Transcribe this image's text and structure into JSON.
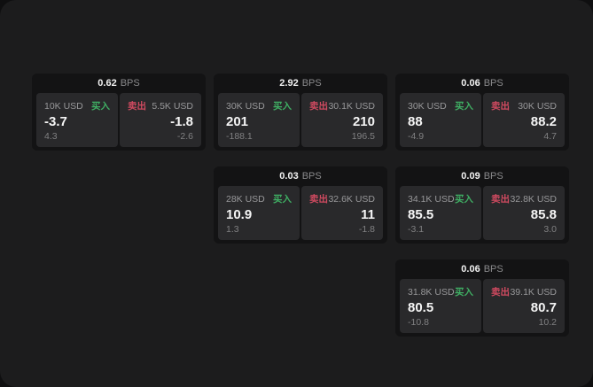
{
  "labels": {
    "bps": "BPS",
    "buy": "买入",
    "sell": "卖出"
  },
  "colors": {
    "buy": "#3fae63",
    "sell": "#d04a60",
    "window_bg": "#1c1c1d",
    "card_bg": "#131314",
    "panel_bg": "#29292b"
  },
  "cards": [
    {
      "row": 1,
      "col": 1,
      "spread_bps": "0.62",
      "buy": {
        "notional": "10K USD",
        "price": "-3.7",
        "sub": "4.3"
      },
      "sell": {
        "notional": "5.5K USD",
        "price": "-1.8",
        "sub": "-2.6"
      }
    },
    {
      "row": 1,
      "col": 2,
      "spread_bps": "2.92",
      "buy": {
        "notional": "30K USD",
        "price": "201",
        "sub": "-188.1"
      },
      "sell": {
        "notional": "30.1K USD",
        "price": "210",
        "sub": "196.5"
      }
    },
    {
      "row": 1,
      "col": 3,
      "spread_bps": "0.06",
      "buy": {
        "notional": "30K USD",
        "price": "88",
        "sub": "-4.9"
      },
      "sell": {
        "notional": "30K USD",
        "price": "88.2",
        "sub": "4.7"
      }
    },
    {
      "row": 2,
      "col": 2,
      "spread_bps": "0.03",
      "buy": {
        "notional": "28K USD",
        "price": "10.9",
        "sub": "1.3"
      },
      "sell": {
        "notional": "32.6K USD",
        "price": "11",
        "sub": "-1.8"
      }
    },
    {
      "row": 2,
      "col": 3,
      "spread_bps": "0.09",
      "buy": {
        "notional": "34.1K USD",
        "price": "85.5",
        "sub": "-3.1"
      },
      "sell": {
        "notional": "32.8K USD",
        "price": "85.8",
        "sub": "3.0"
      }
    },
    {
      "row": 3,
      "col": 3,
      "spread_bps": "0.06",
      "buy": {
        "notional": "31.8K USD",
        "price": "80.5",
        "sub": "-10.8"
      },
      "sell": {
        "notional": "39.1K USD",
        "price": "80.7",
        "sub": "10.2"
      }
    }
  ]
}
